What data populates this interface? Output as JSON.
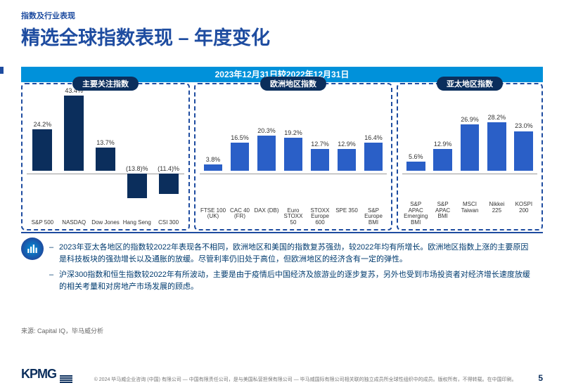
{
  "header": {
    "section_label": "指数及行业表现",
    "title": "精选全球指数表现 – 年度变化",
    "date_band": "2023年12月31日较2022年12月31日"
  },
  "chart": {
    "ylim_pos": 45,
    "ylim_neg": 18,
    "bar_color_dark": "#0b2e5c",
    "bar_color_blue": "#2a5fc7",
    "value_fontsize": 9,
    "label_fontsize": 8,
    "panels": [
      {
        "label": "主要关注指数",
        "bars": [
          {
            "name": "S&P 500",
            "value": 24.2,
            "display": "24.2%",
            "color": "#0b2e5c"
          },
          {
            "name": "NASDAQ",
            "value": 43.4,
            "display": "43.4%",
            "color": "#0b2e5c"
          },
          {
            "name": "Dow Jones",
            "value": 13.7,
            "display": "13.7%",
            "color": "#0b2e5c"
          },
          {
            "name": "Hang Seng",
            "value": -13.8,
            "display": "(13.8)%",
            "color": "#0b2e5c"
          },
          {
            "name": "CSI 300",
            "value": -11.4,
            "display": "(11.4)%",
            "color": "#0b2e5c"
          }
        ]
      },
      {
        "label": "欧洲地区指数",
        "bars": [
          {
            "name": "FTSE 100 (UK)",
            "value": 3.8,
            "display": "3.8%",
            "color": "#2a5fc7"
          },
          {
            "name": "CAC 40 (FR)",
            "value": 16.5,
            "display": "16.5%",
            "color": "#2a5fc7"
          },
          {
            "name": "DAX (DB)",
            "value": 20.3,
            "display": "20.3%",
            "color": "#2a5fc7"
          },
          {
            "name": "Euro STOXX 50",
            "value": 19.2,
            "display": "19.2%",
            "color": "#2a5fc7"
          },
          {
            "name": "STOXX Europe 600",
            "value": 12.7,
            "display": "12.7%",
            "color": "#2a5fc7"
          },
          {
            "name": "SPE 350",
            "value": 12.9,
            "display": "12.9%",
            "color": "#2a5fc7"
          },
          {
            "name": "S&P Europe BMI",
            "value": 16.4,
            "display": "16.4%",
            "color": "#2a5fc7"
          }
        ]
      },
      {
        "label": "亚太地区指数",
        "bars": [
          {
            "name": "S&P APAC Emerging BMI",
            "value": 5.6,
            "display": "5.6%",
            "color": "#2a5fc7"
          },
          {
            "name": "S&P APAC BMI",
            "value": 12.9,
            "display": "12.9%",
            "color": "#2a5fc7"
          },
          {
            "name": "MSCI Taiwan",
            "value": 26.9,
            "display": "26.9%",
            "color": "#2a5fc7"
          },
          {
            "name": "Nikkei 225",
            "value": 28.2,
            "display": "28.2%",
            "color": "#2a5fc7"
          },
          {
            "name": "KOSPI 200",
            "value": 23.0,
            "display": "23.0%",
            "color": "#2a5fc7"
          }
        ]
      }
    ]
  },
  "commentary": {
    "bullets": [
      "2023年亚太各地区的指数较2022年表现各不相同，欧洲地区和美国的指数复苏强劲，较2022年均有所增长。欧洲地区指数上涨的主要原因是科技板块的强劲增长以及通胀的放缓。尽管利率仍旧处于高位，但欧洲地区的经济含有一定的弹性。",
      "沪深300指数和恒生指数较2022年有所波动，主要是由于疫情后中国经济及旅游业的逐步复苏，另外也受到市场投资者对经济增长速度放缓的相关考量和对房地产市场发展的顾虑。"
    ]
  },
  "source": "来源: Capital IQ，毕马威分析",
  "footer": {
    "logo_text": "KPMG",
    "copyright": "© 2024 毕马威企业咨询 (中国) 有限公司 — 中国有限责任公司，是与美国私营担保有限公司 — 毕马威国际有限公司相关联的独立成员所全球性组织中的成员。版权所有，不得转载。在中国印刷。",
    "page_number": "5"
  }
}
